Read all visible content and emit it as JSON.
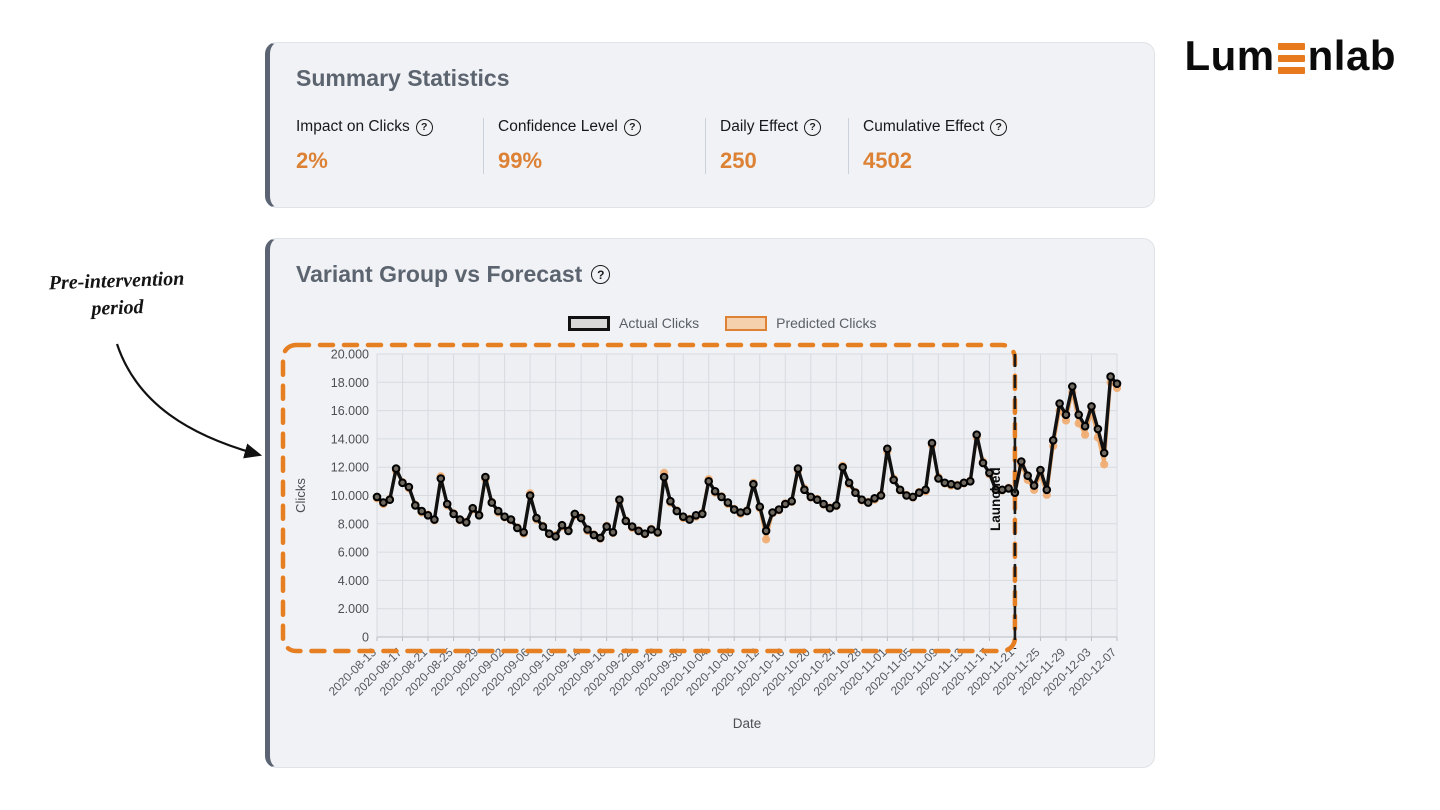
{
  "logo": {
    "text_before": "Lum",
    "text_after": "nlab",
    "bar_color": "#e87a1e"
  },
  "icons": {
    "help_glyph": "?"
  },
  "summary_card": {
    "title": "Summary Statistics",
    "metrics": [
      {
        "label": "Impact on Clicks",
        "value": "2%"
      },
      {
        "label": "Confidence Level",
        "value": "99%"
      },
      {
        "label": "Daily Effect",
        "value": "250"
      },
      {
        "label": "Cumulative Effect",
        "value": "4502"
      }
    ]
  },
  "chart_card": {
    "title": "Variant Group vs Forecast"
  },
  "annotation": {
    "line1": "Pre-intervention",
    "line2": "period"
  },
  "chart_data": {
    "type": "line",
    "title": "Variant Group vs Forecast",
    "xlabel": "Date",
    "ylabel": "Clicks",
    "ylim": [
      0,
      20000
    ],
    "y_tick_values": [
      0,
      2000,
      4000,
      6000,
      8000,
      10000,
      12000,
      14000,
      16000,
      18000,
      20000
    ],
    "y_tick_labels": [
      "0",
      "2.000",
      "4.000",
      "6.000",
      "8.000",
      "10.000",
      "12.000",
      "14.000",
      "16.000",
      "18.000",
      "20.000"
    ],
    "x_tick_every_days": 4,
    "x_tick_labels": [
      "2020-08-13",
      "2020-08-17",
      "2020-08-21",
      "2020-08-25",
      "2020-08-29",
      "2020-09-02",
      "2020-09-06",
      "2020-09-10",
      "2020-09-14",
      "2020-09-18",
      "2020-09-22",
      "2020-09-26",
      "2020-09-30",
      "2020-10-04",
      "2020-10-08",
      "2020-10-12",
      "2020-10-16",
      "2020-10-20",
      "2020-10-24",
      "2020-10-28",
      "2020-11-01",
      "2020-11-05",
      "2020-11-09",
      "2020-11-13",
      "2020-11-17",
      "2020-11-21",
      "2020-11-25",
      "2020-11-29",
      "2020-12-03",
      "2020-12-07"
    ],
    "date_start": "2020-08-13",
    "date_end": "2020-12-07",
    "launch": {
      "label": "Launched",
      "date": "2020-11-21",
      "index": 100
    },
    "pre_intervention_region": {
      "label": "Pre-intervention period",
      "start_index": 0,
      "end_index": 100
    },
    "grid": true,
    "legend_position": "top",
    "colors": {
      "actual_line": "#111111",
      "actual_marker_fill": "#6f685f",
      "predicted_line": "#ecaa6e",
      "predicted_marker_fill": "#f0ad74",
      "region_dash": "#e67e22",
      "launch_line": "#1a1a1a",
      "gridline": "#d7dbe0",
      "plot_bg": "#edeff2",
      "axis_text": "#55595f"
    },
    "legend": [
      {
        "label": "Actual Clicks",
        "fill": "#d8d8d8",
        "border": "#111111"
      },
      {
        "label": "Predicted Clicks",
        "fill": "#f5d2ad",
        "border": "#dd8135"
      }
    ],
    "series": [
      {
        "name": "Actual Clicks",
        "values": [
          9900,
          9500,
          9700,
          11900,
          10900,
          10600,
          9300,
          8900,
          8600,
          8300,
          11200,
          9400,
          8700,
          8300,
          8100,
          9100,
          8600,
          11300,
          9500,
          8900,
          8500,
          8300,
          7700,
          7400,
          10000,
          8400,
          7800,
          7300,
          7100,
          7900,
          7500,
          8700,
          8400,
          7600,
          7200,
          7000,
          7800,
          7400,
          9700,
          8200,
          7800,
          7500,
          7300,
          7600,
          7400,
          11300,
          9600,
          8900,
          8500,
          8300,
          8600,
          8700,
          11000,
          10300,
          9900,
          9500,
          9000,
          8800,
          8900,
          10800,
          9200,
          7500,
          8800,
          9000,
          9400,
          9600,
          11900,
          10400,
          9900,
          9700,
          9400,
          9100,
          9300,
          12000,
          10900,
          10200,
          9700,
          9500,
          9800,
          10000,
          13300,
          11100,
          10400,
          10000,
          9900,
          10200,
          10400,
          13700,
          11200,
          10900,
          10800,
          10700,
          10900,
          11000,
          14300,
          12300,
          11600,
          10400,
          10400,
          10500,
          10200,
          12400,
          11400,
          10700,
          11800,
          10400,
          13900,
          16500,
          15700,
          17700,
          15700,
          14900,
          16300,
          14700,
          13000,
          18400,
          17900
        ]
      },
      {
        "name": "Predicted Clicks",
        "values": [
          9800,
          9400,
          9750,
          11750,
          10950,
          10500,
          9350,
          8800,
          8650,
          8250,
          11350,
          9300,
          8750,
          8250,
          8150,
          9000,
          8650,
          11150,
          9550,
          8800,
          8450,
          8250,
          7750,
          7300,
          10150,
          8300,
          7850,
          7250,
          7200,
          7800,
          7550,
          8600,
          8450,
          7500,
          7250,
          6950,
          7850,
          7350,
          9600,
          8250,
          7700,
          7550,
          7250,
          7650,
          7350,
          11600,
          9500,
          8950,
          8400,
          8350,
          8500,
          8750,
          11150,
          10200,
          9950,
          9400,
          9050,
          8700,
          8950,
          10900,
          9100,
          6900,
          8750,
          8950,
          9450,
          9550,
          11750,
          10500,
          9850,
          9750,
          9350,
          9150,
          9250,
          12100,
          10800,
          10250,
          9650,
          9550,
          9700,
          10050,
          13100,
          11200,
          10350,
          10050,
          9850,
          10250,
          10300,
          13550,
          11300,
          10850,
          10700,
          10750,
          10850,
          11050,
          14100,
          12400,
          11500,
          10450,
          10350,
          10550,
          10150,
          12150,
          11100,
          10400,
          11450,
          10050,
          13500,
          16000,
          15300,
          17300,
          15100,
          14300,
          15900,
          14100,
          12200,
          18000,
          17600
        ]
      }
    ]
  }
}
